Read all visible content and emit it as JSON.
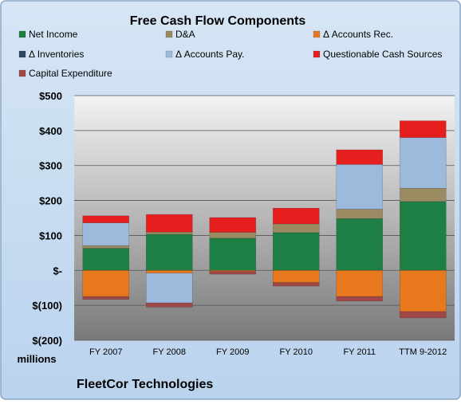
{
  "chart_data": {
    "type": "bar",
    "stacked": true,
    "title": "Free Cash Flow Components",
    "unit_label": "millions",
    "footer": "FleetCor Technologies",
    "categories": [
      "FY 2007",
      "FY 2008",
      "FY 2009",
      "FY 2010",
      "FY 2011",
      "TTM 9-2012"
    ],
    "ylim": [
      -200,
      500
    ],
    "yticks": [
      {
        "value": 500,
        "label": "$500"
      },
      {
        "value": 400,
        "label": "$400"
      },
      {
        "value": 300,
        "label": "$300"
      },
      {
        "value": 200,
        "label": "$200"
      },
      {
        "value": 100,
        "label": "$100"
      },
      {
        "value": 0,
        "label": "$-"
      },
      {
        "value": -100,
        "label": "$(100)"
      },
      {
        "value": -200,
        "label": "$(200)"
      }
    ],
    "grid": true,
    "legend_position": "top",
    "series": [
      {
        "name": "Net Income",
        "color": "#1e7f45",
        "values": [
          63,
          103,
          92,
          108,
          148,
          197
        ]
      },
      {
        "name": "D&A",
        "color": "#9a8b63",
        "values": [
          8,
          7,
          17,
          25,
          27,
          38
        ]
      },
      {
        "name": "Δ Accounts Rec.",
        "color": "#e8781e",
        "values": [
          -75,
          -8,
          -3,
          -35,
          -75,
          -118
        ]
      },
      {
        "name": "Δ Inventories",
        "color": "#2e4a63",
        "values": [
          0,
          0,
          0,
          0,
          0,
          0
        ]
      },
      {
        "name": "Δ Accounts Pay.",
        "color": "#9db9dc",
        "values": [
          65,
          -85,
          0,
          0,
          128,
          145
        ]
      },
      {
        "name": "Questionable Cash Sources",
        "color": "#e61e1e",
        "values": [
          20,
          50,
          42,
          45,
          42,
          48
        ]
      },
      {
        "name": "Capital Expenditure",
        "color": "#a04848",
        "values": [
          -8,
          -12,
          -8,
          -10,
          -13,
          -18
        ]
      }
    ]
  }
}
